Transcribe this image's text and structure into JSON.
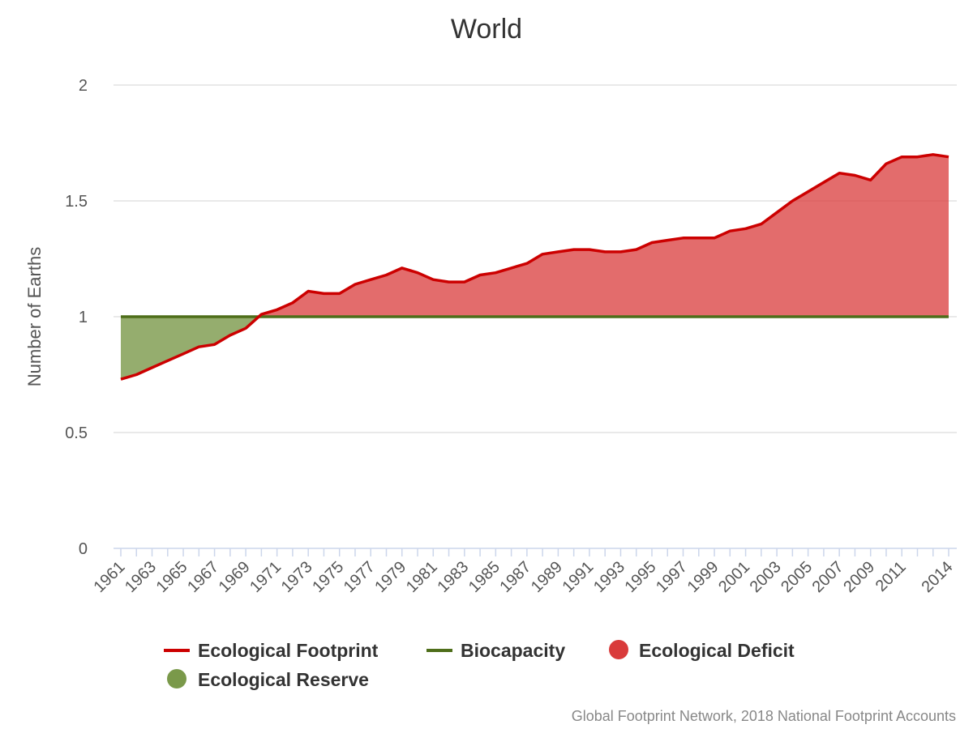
{
  "chart_data": {
    "type": "area",
    "title": "World",
    "ylabel": "Number of Earths",
    "xlabel": "",
    "ylim": [
      0,
      2
    ],
    "yticks": [
      "0",
      "0.5",
      "1",
      "1.5",
      "2"
    ],
    "xticks": [
      "1961",
      "1963",
      "1965",
      "1967",
      "1969",
      "1971",
      "1973",
      "1975",
      "1977",
      "1979",
      "1981",
      "1983",
      "1985",
      "1987",
      "1989",
      "1991",
      "1993",
      "1995",
      "1997",
      "1999",
      "2001",
      "2003",
      "2005",
      "2007",
      "2009",
      "2011",
      "2014"
    ],
    "x": [
      1961,
      1962,
      1963,
      1964,
      1965,
      1966,
      1967,
      1968,
      1969,
      1970,
      1971,
      1972,
      1973,
      1974,
      1975,
      1976,
      1977,
      1978,
      1979,
      1980,
      1981,
      1982,
      1983,
      1984,
      1985,
      1986,
      1987,
      1988,
      1989,
      1990,
      1991,
      1992,
      1993,
      1994,
      1995,
      1996,
      1997,
      1998,
      1999,
      2000,
      2001,
      2002,
      2003,
      2004,
      2005,
      2006,
      2007,
      2008,
      2009,
      2010,
      2011,
      2012,
      2013,
      2014
    ],
    "series": [
      {
        "name": "Ecological Footprint",
        "color": "#cc0000",
        "values": [
          0.73,
          0.75,
          0.78,
          0.81,
          0.84,
          0.87,
          0.88,
          0.92,
          0.95,
          1.01,
          1.03,
          1.06,
          1.11,
          1.1,
          1.1,
          1.14,
          1.16,
          1.18,
          1.21,
          1.19,
          1.16,
          1.15,
          1.15,
          1.18,
          1.19,
          1.21,
          1.23,
          1.27,
          1.28,
          1.29,
          1.29,
          1.28,
          1.28,
          1.29,
          1.32,
          1.33,
          1.34,
          1.34,
          1.34,
          1.37,
          1.38,
          1.4,
          1.45,
          1.5,
          1.54,
          1.58,
          1.62,
          1.61,
          1.59,
          1.66,
          1.69,
          1.69,
          1.7,
          1.69
        ]
      },
      {
        "name": "Biocapacity",
        "color": "#4e6e1a",
        "values": [
          1,
          1,
          1,
          1,
          1,
          1,
          1,
          1,
          1,
          1,
          1,
          1,
          1,
          1,
          1,
          1,
          1,
          1,
          1,
          1,
          1,
          1,
          1,
          1,
          1,
          1,
          1,
          1,
          1,
          1,
          1,
          1,
          1,
          1,
          1,
          1,
          1,
          1,
          1,
          1,
          1,
          1,
          1,
          1,
          1,
          1,
          1,
          1,
          1,
          1,
          1,
          1,
          1,
          1
        ]
      }
    ],
    "areas": [
      {
        "name": "Ecological Deficit",
        "color": "#d93b3b"
      },
      {
        "name": "Ecological Reserve",
        "color": "#7a994a"
      }
    ],
    "grid": true,
    "legend": "bottom"
  },
  "credit": "Global Footprint Network, 2018 National Footprint Accounts"
}
